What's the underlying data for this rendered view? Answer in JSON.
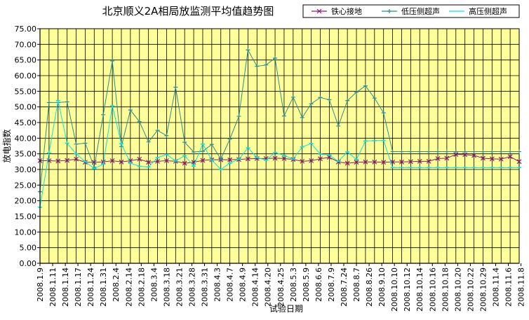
{
  "chart_data": {
    "type": "line",
    "title": "北京顺义2A相局放监测平均值趋势图",
    "xlabel": "试验日期",
    "ylabel": "放电指数",
    "ylim": [
      0,
      75
    ],
    "yticks": [
      "0.00",
      "5.00",
      "10.00",
      "15.00",
      "20.00",
      "25.00",
      "30.00",
      "35.00",
      "40.00",
      "45.00",
      "50.00",
      "55.00",
      "60.00",
      "65.00",
      "70.00",
      "75.00"
    ],
    "grid": true,
    "legend_position": "top-right",
    "plot_background": "#ffff99",
    "categories": [
      "2008.1.9",
      "2008.1.11",
      "2008.1.14",
      "2008.1.17",
      "2008.1.24",
      "2008.1.31",
      "2008.2.4",
      "2008.2.14",
      "2008.2.18",
      "2008.3.4",
      "2008.3.18",
      "2008.3.21",
      "2008.3.28",
      "2008.3.31",
      "2008.4.3",
      "2008.4.7",
      "2008.4.9",
      "2008.4.14",
      "2008.4.20",
      "2008.4.25",
      "2008.5.3",
      "2008.5.9",
      "2008.6.6",
      "2008.7.9",
      "2008.7.24",
      "2008.8.7",
      "2008.8.26",
      "2008.9.10",
      "2008.10.10",
      "2008.10.12",
      "2008.10.14",
      "2008.10.16",
      "2008.10.18",
      "2008.10.20",
      "2008.10.22",
      "2008.10.29",
      "2008.11.4",
      "2008.11.6",
      "2008.11.8"
    ],
    "x_positions": [
      0,
      1.4,
      2.8,
      4.2,
      5.6,
      7,
      8.4,
      9.8,
      11.2,
      12.6,
      14,
      15.4,
      16.8,
      18.2,
      19.6,
      21,
      22.4,
      23.8,
      25.2,
      26.6,
      28,
      29.4,
      30.8,
      32.2,
      33.6,
      35,
      36.4,
      37.8,
      39.2,
      40.6,
      42,
      43.4,
      44.8,
      46.2,
      47.6,
      49,
      50.4,
      51.8,
      53.2
    ],
    "series": [
      {
        "name": "铁心接地",
        "color": "#8b1a6b",
        "marker": "x",
        "x": [
          0,
          1,
          2,
          3,
          4,
          5,
          6,
          7,
          8,
          9,
          10,
          11,
          12,
          13,
          14,
          15,
          16,
          17,
          18,
          19,
          20,
          21,
          22,
          23,
          24,
          25,
          26,
          27,
          28,
          29,
          30,
          31,
          32,
          33,
          34,
          35,
          36,
          37,
          38,
          39,
          40,
          41,
          42,
          43,
          44,
          45,
          46,
          47,
          48,
          49,
          50,
          51,
          52,
          53
        ],
        "values": [
          32.8,
          32.8,
          32.7,
          32.9,
          33.3,
          32.3,
          32.3,
          32.4,
          32.8,
          32.4,
          32.8,
          33.3,
          32.3,
          32.6,
          32.8,
          32.6,
          32.0,
          32.3,
          32.9,
          33.1,
          33.1,
          33.1,
          33.2,
          33.4,
          33.5,
          33.5,
          33.6,
          33.5,
          33.2,
          32.6,
          32.8,
          33.4,
          33.9,
          32.4,
          32.0,
          32.3,
          32.4,
          32.4,
          32.3,
          32.4,
          32.4,
          32.5,
          32.6,
          32.6,
          33.5,
          33.6,
          34.8,
          34.7,
          34.5,
          33.6,
          33.4,
          33.3,
          34.1,
          32.5
        ]
      },
      {
        "name": "低压侧超声",
        "color": "#2a8c8c",
        "marker": "+",
        "x": [
          0,
          1,
          2,
          3,
          4,
          5,
          6,
          7,
          8,
          9,
          10,
          11,
          12,
          13,
          14,
          15,
          16,
          17,
          18,
          19,
          20,
          21,
          22,
          23,
          24,
          25,
          26,
          27,
          28,
          29,
          30,
          31,
          32,
          33,
          34,
          35,
          36,
          37,
          38,
          39,
          40,
          41,
          42,
          43,
          44,
          45,
          46,
          47,
          48,
          49,
          50,
          51,
          52,
          53
        ],
        "values": [
          22.9,
          51.4,
          51.4,
          51.6,
          38.1,
          38.4,
          30.7,
          47.5,
          64.7,
          37.3,
          49.0,
          45.3,
          38.8,
          42.5,
          40.8,
          56.3,
          38.7,
          35.6,
          35.8,
          38.0,
          33.3,
          39.7,
          47.0,
          68.2,
          63.0,
          63.4,
          65.6,
          47.1,
          53.1,
          46.6,
          51.0,
          53.0,
          52.3,
          43.9,
          52.0,
          54.7,
          56.7,
          52.8,
          48.1,
          35.7,
          35.7,
          35.7,
          35.7,
          35.7,
          35.7,
          35.7,
          35.7,
          35.7,
          35.7,
          35.7,
          35.7,
          35.7,
          35.7,
          35.7
        ]
      },
      {
        "name": "高压侧超声",
        "color": "#00e5e5",
        "marker": "-",
        "x": [
          0,
          1,
          2,
          3,
          4,
          5,
          6,
          7,
          8,
          9,
          10,
          11,
          12,
          13,
          14,
          15,
          16,
          17,
          18,
          19,
          20,
          21,
          22,
          23,
          24,
          25,
          26,
          27,
          28,
          29,
          30,
          31,
          32,
          33,
          34,
          35,
          36,
          37,
          38,
          39,
          40,
          41,
          42,
          43,
          44,
          45,
          46,
          47,
          48,
          49,
          50,
          51,
          52,
          53
        ],
        "values": [
          17.9,
          35.3,
          52.0,
          38.4,
          35.0,
          32.5,
          30.3,
          31.7,
          50.4,
          38.2,
          32.0,
          31.0,
          30.8,
          33.8,
          34.8,
          32.7,
          34.4,
          31.1,
          38.1,
          33.0,
          30.0,
          32.0,
          33.3,
          36.9,
          33.8,
          33.0,
          35.4,
          34.5,
          33.3,
          37.2,
          38.3,
          34.9,
          34.6,
          32.6,
          35.6,
          33.2,
          39.1,
          39.2,
          39.3,
          30.6,
          30.6,
          30.6,
          30.6,
          30.6,
          30.6,
          30.6,
          30.6,
          30.6,
          30.6,
          30.6,
          30.6,
          30.6,
          30.6,
          30.6
        ]
      }
    ]
  }
}
